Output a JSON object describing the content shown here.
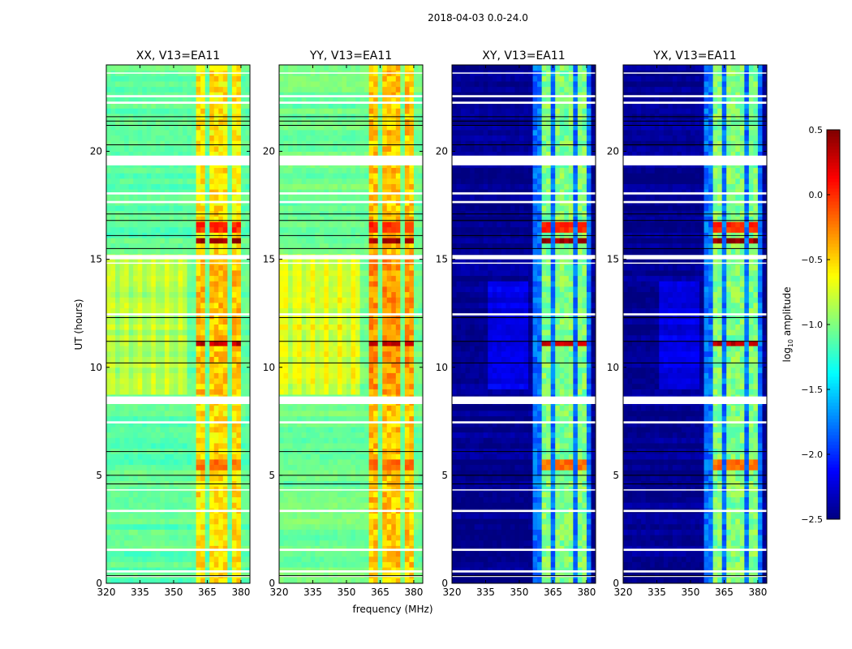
{
  "chart_data": {
    "type": "heatmap",
    "title": "2018-04-03 0.0-24.0",
    "xlabel": "frequency (MHz)",
    "ylabel": "UT (hours)",
    "xlim": [
      320,
      384
    ],
    "ylim": [
      0,
      24
    ],
    "xticks": [
      "320",
      "335",
      "350",
      "365",
      "380"
    ],
    "xtick_values": [
      320,
      335,
      350,
      365,
      380
    ],
    "yticks": [
      "0",
      "5",
      "10",
      "15",
      "20"
    ],
    "ytick_values": [
      0,
      5,
      10,
      15,
      20
    ],
    "colorbar": {
      "label_main": "log",
      "label_sub": "10",
      "label_rest": " amplitude",
      "colormap": "jet",
      "range": [
        -2.5,
        0.5
      ],
      "ticks": [
        "0.5",
        "0.0",
        "−0.5",
        "−1.0",
        "−1.5",
        "−2.0",
        "−2.5"
      ],
      "tick_values": [
        0.5,
        0.0,
        -0.5,
        -1.0,
        -1.5,
        -2.0,
        -2.5
      ]
    },
    "flagged_hours": [
      [
        19.35,
        19.8
      ],
      [
        8.3,
        8.65
      ],
      [
        22.2,
        22.3
      ],
      [
        22.5,
        22.6
      ],
      [
        18.0,
        18.1
      ],
      [
        17.6,
        17.7
      ],
      [
        15.0,
        15.2
      ],
      [
        14.8,
        14.85
      ],
      [
        12.4,
        12.5
      ],
      [
        7.4,
        7.5
      ],
      [
        4.3,
        4.35
      ],
      [
        3.3,
        3.4
      ],
      [
        1.5,
        1.6
      ],
      [
        0.5,
        0.6
      ],
      [
        0.3,
        0.35
      ],
      [
        23.6,
        23.65
      ]
    ],
    "dark_lines_hours": [
      21.6,
      21.4,
      21.2,
      20.3,
      17.1,
      16.8,
      16.1,
      15.5,
      12.3,
      11.2,
      10.2,
      6.1,
      5.0,
      4.6,
      0.35
    ],
    "band_ranges_mhz": [
      [
        360.2,
        364.6
      ],
      [
        366.1,
        369.7
      ],
      [
        370.8,
        374.8
      ],
      [
        376.2,
        379.8
      ]
    ],
    "hot_hours": [
      [
        15.7,
        16.1,
        0.4
      ],
      [
        16.2,
        16.8,
        0.0
      ],
      [
        11.1,
        11.3,
        0.3
      ],
      [
        5.3,
        5.7,
        -0.2
      ]
    ],
    "panels": [
      {
        "title": "XX, V13=EA11",
        "base": -1.1,
        "band_level": -0.55,
        "mid_boost": 0.35
      },
      {
        "title": "YY, V13=EA11",
        "base": -1.05,
        "band_level": -0.45,
        "mid_boost": 0.45
      },
      {
        "title": "XY, V13=EA11",
        "base": -2.45,
        "band_level": -1.0,
        "mid_boost": 0.15
      },
      {
        "title": "YX, V13=EA11",
        "base": -2.45,
        "band_level": -1.0,
        "mid_boost": 0.15
      }
    ]
  }
}
